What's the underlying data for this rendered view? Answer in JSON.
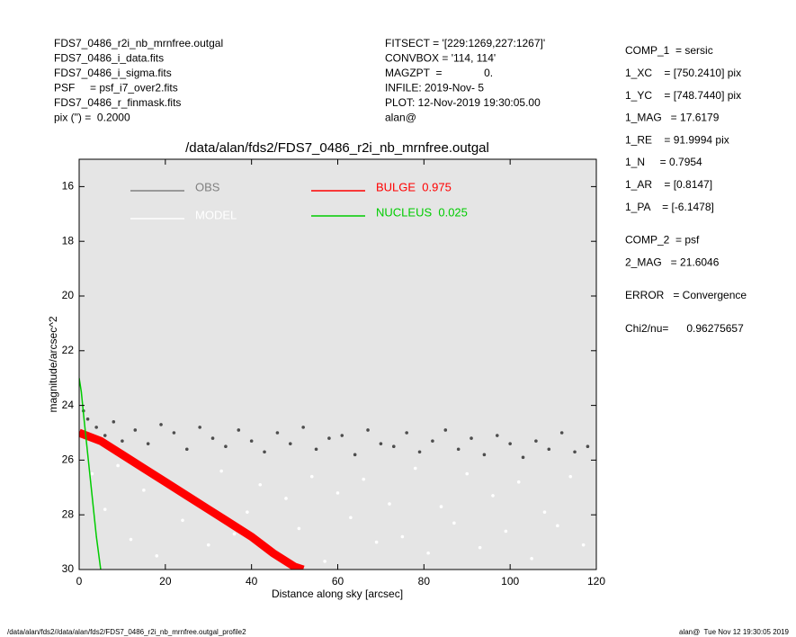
{
  "header_left": [
    "FDS7_0486_r2i_nb_mrnfree.outgal",
    "FDS7_0486_i_data.fits",
    "FDS7_0486_i_sigma.fits",
    "PSF     = psf_i7_over2.fits",
    "FDS7_0486_r_finmask.fits",
    "pix (\") =  0.2000"
  ],
  "header_mid": [
    "FITSECT = '[229:1269,227:1267]'",
    "CONVBOX = '114, 114'",
    "MAGZPT  =              0.",
    "INFILE: 2019-Nov- 5",
    "PLOT: 12-Nov-2019 19:30:05.00",
    "alan@"
  ],
  "params": [
    [
      "COMP_1  = sersic",
      "1_XC    = [750.2410] pix",
      "1_YC    = [748.7440] pix",
      "1_MAG   = 17.6179",
      "1_RE    = 91.9994 pix",
      "1_N     = 0.7954",
      "1_AR    = [0.8147]",
      "1_PA    = [-6.1478]"
    ],
    [
      "COMP_2  = psf",
      "2_MAG   = 21.6046"
    ],
    [
      "ERROR   = Convergence"
    ],
    [
      "Chi2/nu=      0.96275657"
    ]
  ],
  "footer_left": "/data/alan/fds2//data/alan/fds2/FDS7_0486_r2i_nb_mrnfree.outgal_profile2",
  "footer_right": "alan@  Tue Nov 12 19:30:05 2019",
  "chart_data": {
    "type": "scatter",
    "title": "/data/alan/fds2/FDS7_0486_r2i_nb_mrnfree.outgal",
    "x_label": "Distance along sky [arcsec]",
    "y_label": "magnitude/arcsec^2",
    "xlim": [
      0,
      120
    ],
    "ylim": [
      15,
      30
    ],
    "y_inverted": true,
    "xticks": [
      0,
      20,
      40,
      60,
      80,
      100,
      120
    ],
    "yticks": [
      16,
      18,
      20,
      22,
      24,
      26,
      28,
      30
    ],
    "background": "#e5e5e5",
    "series": [
      {
        "name": "OBS",
        "color": "#4d4d4d",
        "mode": "markers",
        "x": [
          1,
          2,
          4,
          6,
          8,
          10,
          13,
          16,
          19,
          22,
          25,
          28,
          31,
          34,
          37,
          40,
          43,
          46,
          49,
          52,
          55,
          58,
          61,
          64,
          67,
          70,
          73,
          76,
          79,
          82,
          85,
          88,
          91,
          94,
          97,
          100,
          103,
          106,
          109,
          112,
          115,
          118
        ],
        "values": [
          24.2,
          24.5,
          24.8,
          25.1,
          24.6,
          25.3,
          24.9,
          25.4,
          24.7,
          25.0,
          25.6,
          24.8,
          25.2,
          25.5,
          24.9,
          25.3,
          25.7,
          25.0,
          25.4,
          24.8,
          25.6,
          25.2,
          25.1,
          25.8,
          24.9,
          25.4,
          25.5,
          25.0,
          25.7,
          25.3,
          24.9,
          25.6,
          25.2,
          25.8,
          25.1,
          25.4,
          25.9,
          25.3,
          25.6,
          25.0,
          25.7,
          25.5
        ]
      },
      {
        "name": "MODEL",
        "color": "#ffffff",
        "mode": "markers",
        "x": [
          3,
          6,
          9,
          12,
          15,
          18,
          21,
          24,
          27,
          30,
          33,
          36,
          39,
          42,
          45,
          48,
          51,
          54,
          57,
          60,
          63,
          66,
          69,
          72,
          75,
          78,
          81,
          84,
          87,
          90,
          93,
          96,
          99,
          102,
          105,
          108,
          111,
          114,
          117
        ],
        "values": [
          26.5,
          27.8,
          26.2,
          28.9,
          27.1,
          29.5,
          26.8,
          28.2,
          27.5,
          29.1,
          26.4,
          28.7,
          27.9,
          26.9,
          29.3,
          27.4,
          28.5,
          26.6,
          29.7,
          27.2,
          28.1,
          26.7,
          29.0,
          27.6,
          28.8,
          26.3,
          29.4,
          27.7,
          28.3,
          26.5,
          29.2,
          27.3,
          28.6,
          26.8,
          29.6,
          27.9,
          28.4,
          26.6,
          29.1
        ]
      },
      {
        "name": "BULGE  0.975",
        "color": "#ff0000",
        "mode": "band",
        "x": [
          0,
          5,
          10,
          15,
          20,
          25,
          30,
          35,
          40,
          45,
          50,
          52
        ],
        "values": [
          25,
          25.3,
          25.8,
          26.3,
          26.8,
          27.3,
          27.8,
          28.3,
          28.8,
          29.4,
          29.9,
          30
        ]
      },
      {
        "name": "NUCLEUS  0.025",
        "color": "#00cc00",
        "mode": "line",
        "x": [
          0,
          0.5,
          1,
          2,
          3,
          4,
          5
        ],
        "values": [
          23,
          23.5,
          24.3,
          25.8,
          27.3,
          28.8,
          30
        ]
      }
    ]
  }
}
